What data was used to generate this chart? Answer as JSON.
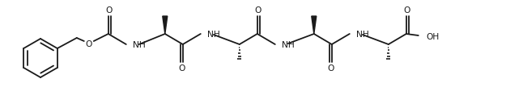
{
  "figsize": [
    6.46,
    1.34
  ],
  "dpi": 100,
  "bg_color": "#ffffff",
  "line_color": "#1a1a1a",
  "line_width": 1.3,
  "font_size": 7.2,
  "xlim": [
    0,
    646
  ],
  "ylim": [
    0,
    134
  ]
}
